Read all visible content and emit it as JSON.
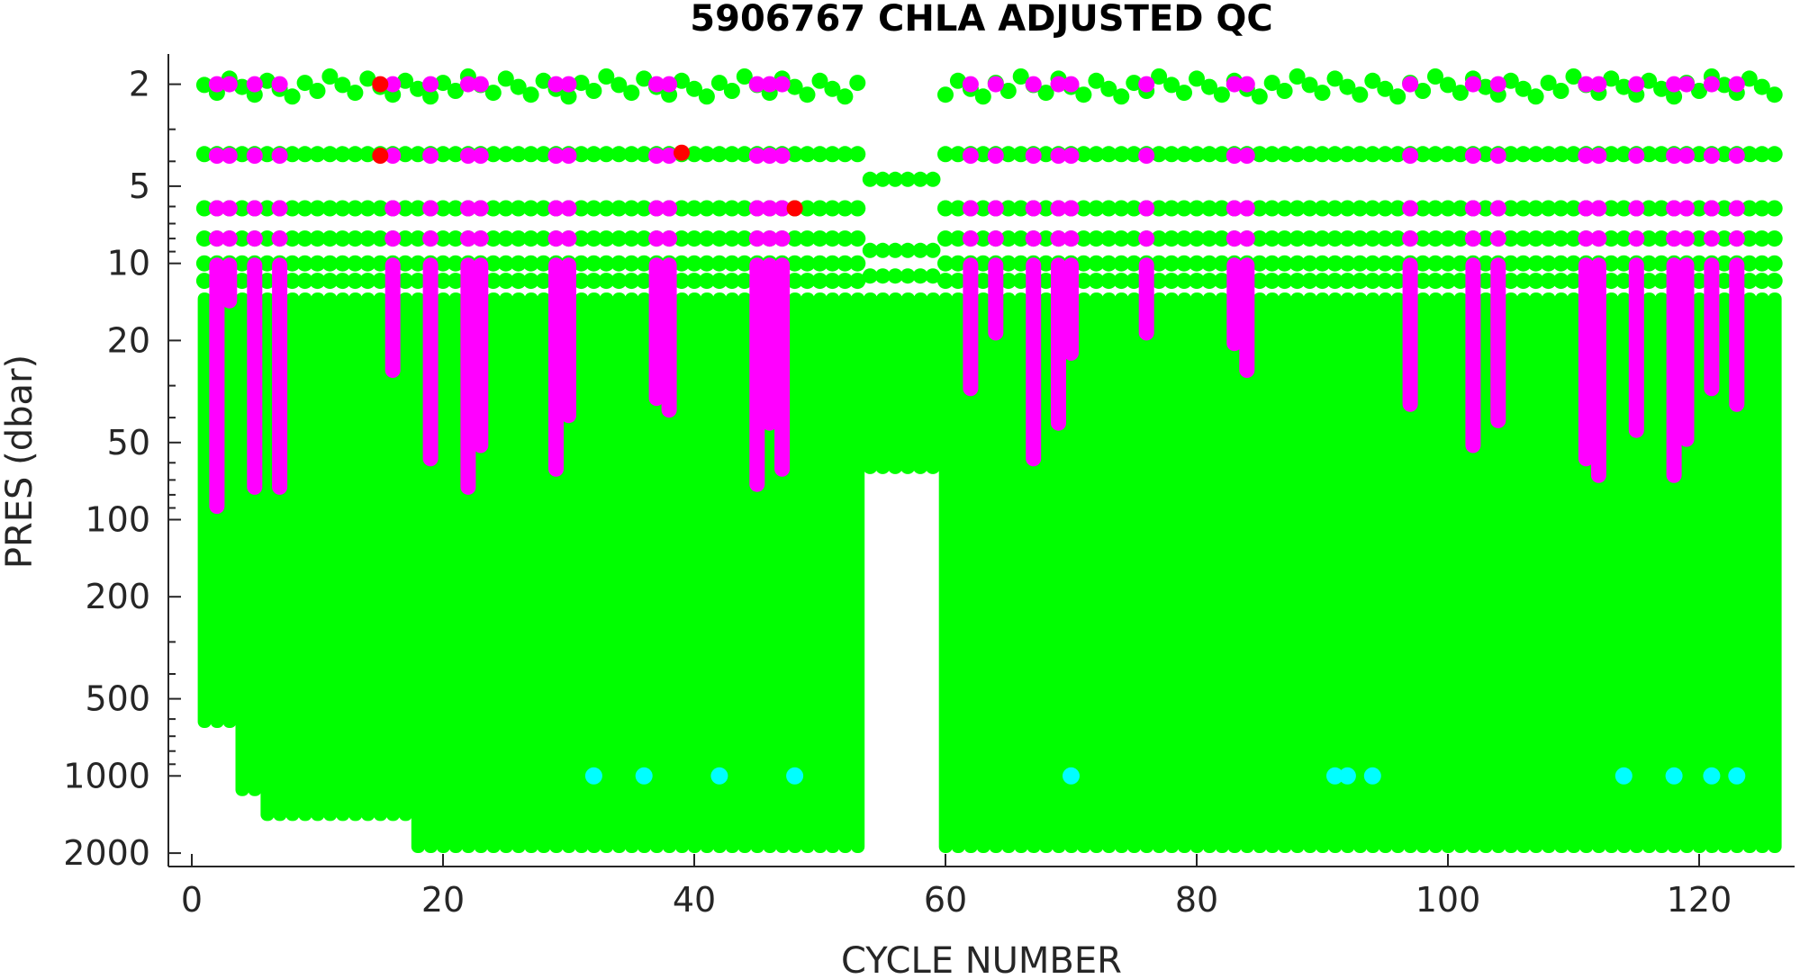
{
  "chart_data": {
    "type": "scatter",
    "title": "5906767  CHLA ADJUSTED QC",
    "xlabel": "CYCLE NUMBER",
    "ylabel": "PRES (dbar)",
    "xlim": [
      -1,
      127
    ],
    "ylim": [
      1.5,
      2150
    ],
    "y_scale": "log",
    "y_reversed": true,
    "x_ticks": [
      "0",
      "20",
      "40",
      "60",
      "80",
      "100",
      "120"
    ],
    "y_ticks": [
      "2",
      "5",
      "10",
      "20",
      "50",
      "100",
      "200",
      "500",
      "1000",
      "2000"
    ],
    "grid": false,
    "legend": "none",
    "qc_colors": {
      "qc_1_good": "#00ff00",
      "qc_2_probably_good": "#ff00ff",
      "qc_3_probably_bad": "#00ffff",
      "qc_4_bad": "#ff0000"
    },
    "cycles_present": [
      [
        1,
        53
      ],
      [
        54,
        59
      ],
      [
        60,
        126
      ]
    ],
    "good_profile_max_pres": [
      {
        "from_cycle": 1,
        "to_cycle": 3,
        "max_pres": 650
      },
      {
        "from_cycle": 4,
        "to_cycle": 5,
        "max_pres": 1200
      },
      {
        "from_cycle": 6,
        "to_cycle": 17,
        "max_pres": 1500
      },
      {
        "from_cycle": 18,
        "to_cycle": 53,
        "max_pres": 2000
      },
      {
        "from_cycle": 54,
        "to_cycle": 59,
        "max_pres": 62
      },
      {
        "from_cycle": 60,
        "to_cycle": 126,
        "max_pres": 2000
      }
    ],
    "probably_good_segments": [
      {
        "cycle": 2,
        "max_pres": 95
      },
      {
        "cycle": 3,
        "max_pres": 15
      },
      {
        "cycle": 5,
        "max_pres": 80
      },
      {
        "cycle": 7,
        "max_pres": 80
      },
      {
        "cycle": 16,
        "max_pres": 28
      },
      {
        "cycle": 19,
        "max_pres": 62
      },
      {
        "cycle": 22,
        "max_pres": 80
      },
      {
        "cycle": 23,
        "max_pres": 55
      },
      {
        "cycle": 29,
        "max_pres": 68
      },
      {
        "cycle": 30,
        "max_pres": 42
      },
      {
        "cycle": 37,
        "max_pres": 36
      },
      {
        "cycle": 38,
        "max_pres": 40
      },
      {
        "cycle": 45,
        "max_pres": 78
      },
      {
        "cycle": 46,
        "max_pres": 45
      },
      {
        "cycle": 47,
        "max_pres": 68
      },
      {
        "cycle": 62,
        "max_pres": 33
      },
      {
        "cycle": 64,
        "max_pres": 20
      },
      {
        "cycle": 67,
        "max_pres": 62
      },
      {
        "cycle": 69,
        "max_pres": 45
      },
      {
        "cycle": 70,
        "max_pres": 24
      },
      {
        "cycle": 76,
        "max_pres": 20
      },
      {
        "cycle": 83,
        "max_pres": 22
      },
      {
        "cycle": 84,
        "max_pres": 28
      },
      {
        "cycle": 97,
        "max_pres": 38
      },
      {
        "cycle": 102,
        "max_pres": 55
      },
      {
        "cycle": 104,
        "max_pres": 44
      },
      {
        "cycle": 111,
        "max_pres": 62
      },
      {
        "cycle": 112,
        "max_pres": 72
      },
      {
        "cycle": 115,
        "max_pres": 48
      },
      {
        "cycle": 118,
        "max_pres": 72
      },
      {
        "cycle": 119,
        "max_pres": 52
      },
      {
        "cycle": 121,
        "max_pres": 33
      },
      {
        "cycle": 123,
        "max_pres": 38
      }
    ],
    "probably_bad_points": [
      {
        "cycle": 32,
        "pres": 1000
      },
      {
        "cycle": 36,
        "pres": 1000
      },
      {
        "cycle": 42,
        "pres": 1000
      },
      {
        "cycle": 48,
        "pres": 1000
      },
      {
        "cycle": 70,
        "pres": 1000
      },
      {
        "cycle": 91,
        "pres": 1000
      },
      {
        "cycle": 92,
        "pres": 1000
      },
      {
        "cycle": 94,
        "pres": 1000
      },
      {
        "cycle": 114,
        "pres": 1000
      },
      {
        "cycle": 118,
        "pres": 1000
      },
      {
        "cycle": 121,
        "pres": 1000
      },
      {
        "cycle": 123,
        "pres": 1000
      }
    ],
    "bad_points": [
      {
        "cycle": 15,
        "pres": 2.0
      },
      {
        "cycle": 15,
        "pres": 3.8
      },
      {
        "cycle": 39,
        "pres": 3.7
      },
      {
        "cycle": 48,
        "pres": 6.1
      }
    ]
  }
}
